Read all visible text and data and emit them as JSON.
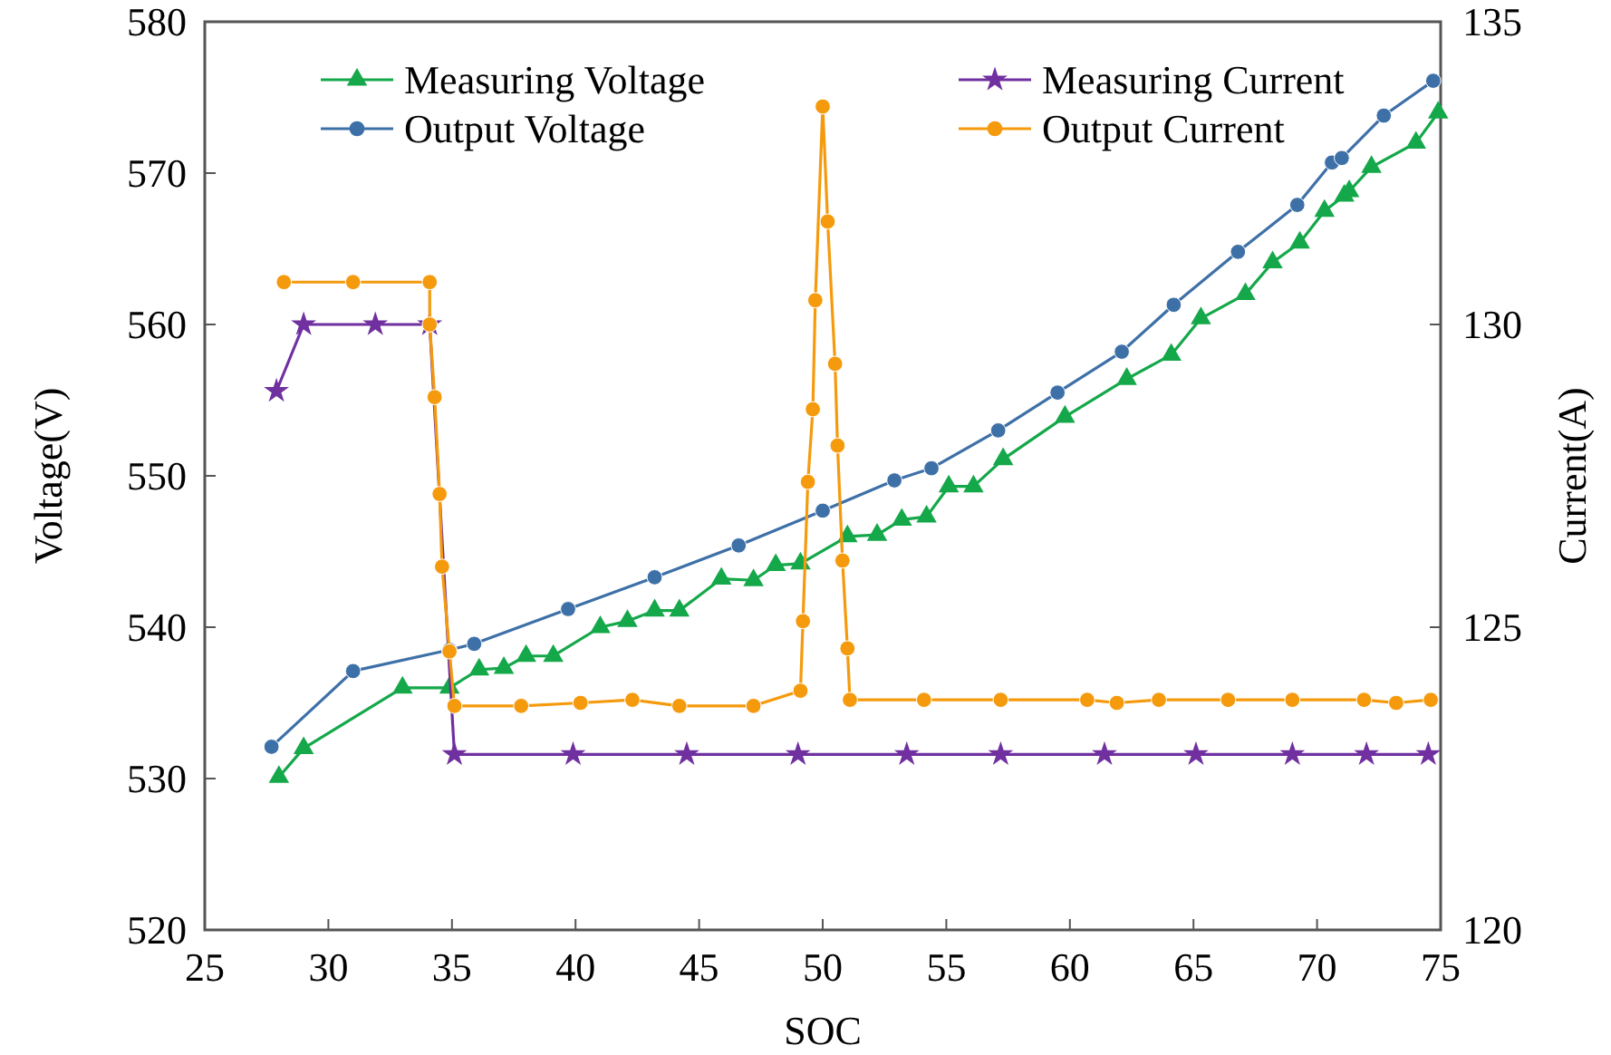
{
  "chart_data": {
    "type": "line",
    "xlabel": "SOC",
    "ylabel": "Voltage(V)",
    "y2label": "Current(A)",
    "xlim": [
      25,
      75
    ],
    "xticks": [
      25,
      30,
      35,
      40,
      45,
      50,
      55,
      60,
      65,
      70,
      75
    ],
    "ylim": [
      520,
      580
    ],
    "yticks": [
      520,
      530,
      540,
      550,
      560,
      570,
      580
    ],
    "y2lim": [
      120,
      135
    ],
    "y2ticks": [
      120,
      125,
      130,
      135
    ],
    "legend": "top",
    "grid": false,
    "series": [
      {
        "name": "Measuring Voltage",
        "color": "#14a84a",
        "marker": "triangle",
        "x": [
          28.0,
          29.0,
          33.0,
          34.9,
          36.1,
          37.1,
          38.0,
          39.1,
          41.0,
          42.1,
          43.2,
          44.2,
          45.9,
          47.2,
          48.1,
          49.1,
          51.0,
          52.2,
          53.2,
          54.2,
          55.1,
          56.1,
          57.3,
          59.8,
          62.3,
          64.1,
          65.3,
          67.1,
          68.2,
          69.3,
          70.3,
          71.1,
          71.3,
          72.2,
          74.0,
          74.9
        ],
        "values": [
          530.1,
          532.0,
          536.0,
          536.0,
          537.2,
          537.3,
          538.1,
          538.1,
          540.0,
          540.4,
          541.1,
          541.1,
          543.2,
          543.1,
          544.1,
          544.2,
          546.0,
          546.1,
          547.1,
          547.3,
          549.3,
          549.3,
          551.1,
          553.9,
          556.4,
          558.0,
          560.4,
          562.0,
          564.1,
          565.4,
          567.5,
          568.5,
          568.8,
          570.4,
          572.0,
          574.0
        ]
      },
      {
        "name": "Output Voltage",
        "color": "#3e70a8",
        "marker": "circle",
        "x": [
          27.7,
          31.0,
          34.9,
          35.9,
          39.7,
          43.2,
          46.6,
          50.0,
          52.9,
          54.4,
          57.1,
          59.5,
          62.1,
          64.2,
          66.8,
          69.2,
          70.6,
          71.0,
          72.7,
          74.7
        ],
        "values": [
          532.1,
          537.1,
          538.5,
          538.9,
          541.2,
          543.3,
          545.4,
          547.7,
          549.7,
          550.5,
          553.0,
          555.5,
          558.2,
          561.3,
          564.8,
          567.9,
          570.7,
          571.0,
          573.8,
          576.1
        ]
      },
      {
        "name": "Measuring Current",
        "color": "#7030a0",
        "marker": "star",
        "axis": "y2",
        "x": [
          27.9,
          29.0,
          31.9,
          34.1,
          35.1,
          39.9,
          44.5,
          49.0,
          53.4,
          57.2,
          61.4,
          65.1,
          69.0,
          72.0,
          74.5
        ],
        "values": [
          128.9,
          130.0,
          130.0,
          130.0,
          122.9,
          122.9,
          122.9,
          122.9,
          122.9,
          122.9,
          122.9,
          122.9,
          122.9,
          122.9,
          122.9
        ]
      },
      {
        "name": "Output Current",
        "color": "#f59a0c",
        "marker": "circle",
        "axis": "y2",
        "x": [
          28.2,
          31.0,
          34.1,
          34.1,
          34.3,
          34.5,
          34.6,
          34.9,
          35.1,
          37.8,
          40.2,
          42.3,
          44.2,
          47.2,
          49.1,
          49.2,
          49.4,
          49.6,
          49.7,
          50.0,
          50.2,
          50.5,
          50.6,
          50.8,
          51.0,
          51.1,
          54.1,
          57.2,
          60.7,
          61.9,
          63.6,
          66.4,
          69.0,
          71.9,
          73.2,
          74.6
        ],
        "values": [
          130.7,
          130.7,
          130.7,
          130.0,
          128.8,
          127.2,
          126.0,
          124.6,
          123.7,
          123.7,
          123.75,
          123.8,
          123.7,
          123.7,
          123.95,
          125.1,
          127.4,
          128.6,
          130.4,
          133.6,
          131.7,
          129.35,
          128.0,
          126.1,
          124.65,
          123.8,
          123.8,
          123.8,
          123.8,
          123.75,
          123.8,
          123.8,
          123.8,
          123.8,
          123.75,
          123.8
        ]
      }
    ]
  }
}
